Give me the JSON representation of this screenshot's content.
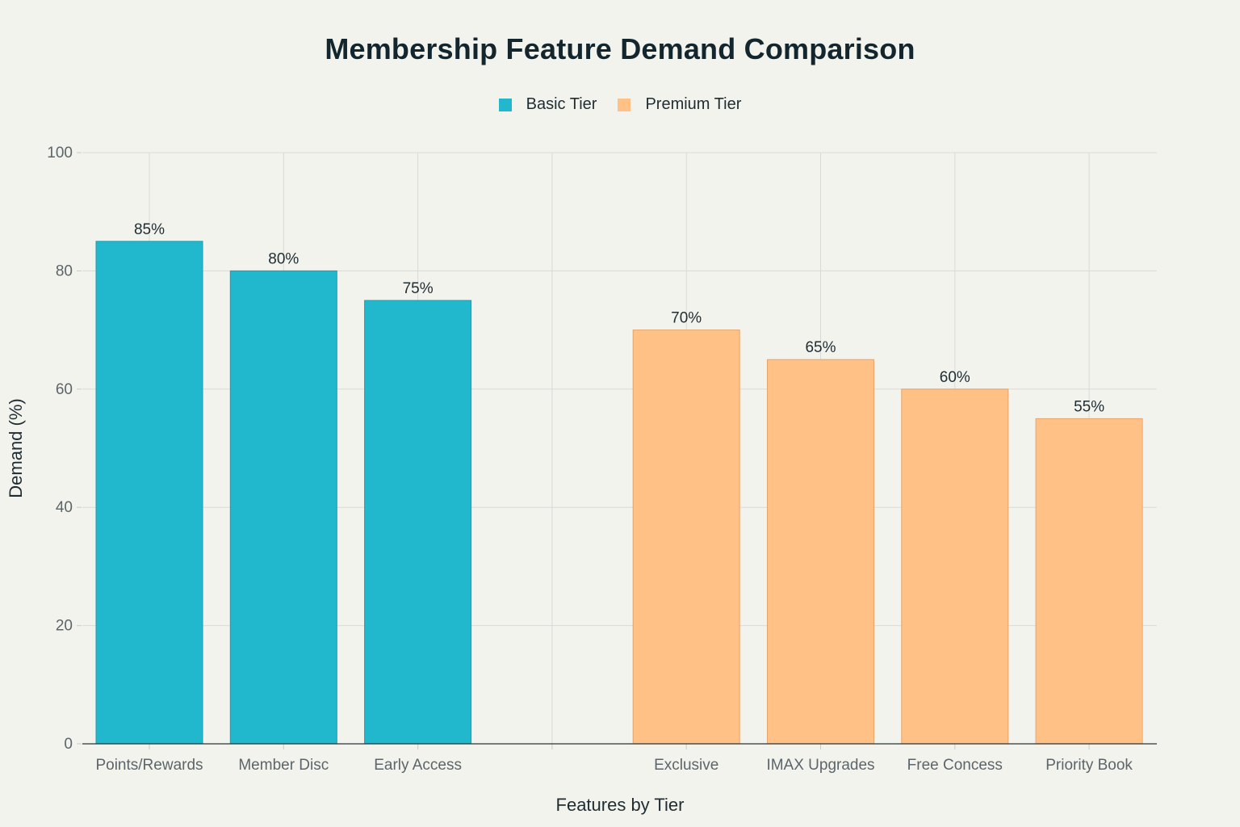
{
  "chart_data": {
    "type": "bar",
    "title": "Membership Feature Demand Comparison",
    "xlabel": "Features by Tier",
    "ylabel": "Demand (%)",
    "ylim": [
      0,
      100
    ],
    "yticks": [
      0,
      20,
      40,
      60,
      80,
      100
    ],
    "grid": true,
    "legend_position": "top-center",
    "categories": [
      "Points/Rewards",
      "Member Disc",
      "Early Access",
      "",
      "Exclusive",
      "IMAX Upgrades",
      "Free Concess",
      "Priority Book"
    ],
    "series": [
      {
        "name": "Basic Tier",
        "color": "#21b7cc",
        "border": "#1a9fb1",
        "values": [
          85,
          80,
          75,
          null,
          null,
          null,
          null,
          null
        ],
        "labels": [
          "85%",
          "80%",
          "75%",
          "",
          "",
          "",
          "",
          ""
        ]
      },
      {
        "name": "Premium Tier",
        "color": "#ffc185",
        "border": "#e7a46c",
        "values": [
          null,
          null,
          null,
          null,
          70,
          65,
          60,
          55
        ],
        "labels": [
          "",
          "",
          "",
          "",
          "70%",
          "65%",
          "60%",
          "55%"
        ]
      }
    ]
  }
}
